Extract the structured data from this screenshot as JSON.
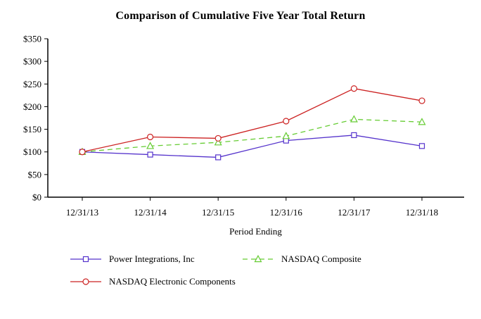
{
  "title": "Comparison of Cumulative Five Year Total Return",
  "chart_data": {
    "type": "line",
    "x": [
      "12/31/13",
      "12/31/14",
      "12/31/15",
      "12/31/16",
      "12/31/17",
      "12/31/18"
    ],
    "series": [
      {
        "name": "Power Integrations, Inc",
        "color": "#5533cc",
        "marker": "square",
        "dash": "solid",
        "values": [
          100,
          94,
          88,
          125,
          137,
          113
        ]
      },
      {
        "name": "NASDAQ Composite",
        "color": "#66cc33",
        "marker": "triangle",
        "dash": "dashed",
        "values": [
          100,
          113,
          121,
          135,
          172,
          166
        ]
      },
      {
        "name": "NASDAQ Electronic Components",
        "color": "#cc2222",
        "marker": "circle",
        "dash": "solid",
        "values": [
          100,
          133,
          130,
          168,
          240,
          213
        ]
      }
    ],
    "xlabel": "Period Ending",
    "ylabel": "",
    "ylim": [
      0,
      350
    ],
    "ytick_step": 50,
    "ytick_prefix": "$",
    "grid": false,
    "legend_position": "bottom"
  }
}
